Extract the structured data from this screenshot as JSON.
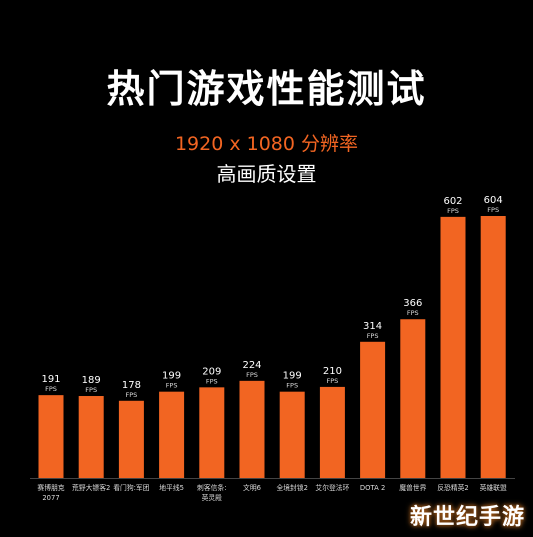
{
  "header": {
    "title": "热门游戏性能测试",
    "subtitle": "1920 x 1080 分辨率",
    "subtitle2": "高画质设置"
  },
  "watermark": "新世纪手游",
  "colors": {
    "bar": "#f26522",
    "axis": "#444444",
    "text": "#ffffff",
    "label": "#dddddd"
  },
  "chart_data": {
    "type": "bar",
    "unit_label": "FPS",
    "categories": [
      "赛博朋克\n2077",
      "荒野大镖客2",
      "看门狗:军团",
      "地平线5",
      "刺客信条:\n英灵殿",
      "文明6",
      "全境封锁2",
      "艾尔登法环",
      "DOTA 2",
      "魔兽世界",
      "反恐精英2",
      "英雄联盟"
    ],
    "values": [
      191,
      189,
      178,
      199,
      209,
      224,
      199,
      210,
      314,
      366,
      602,
      604
    ],
    "ylim": [
      0,
      604
    ]
  }
}
